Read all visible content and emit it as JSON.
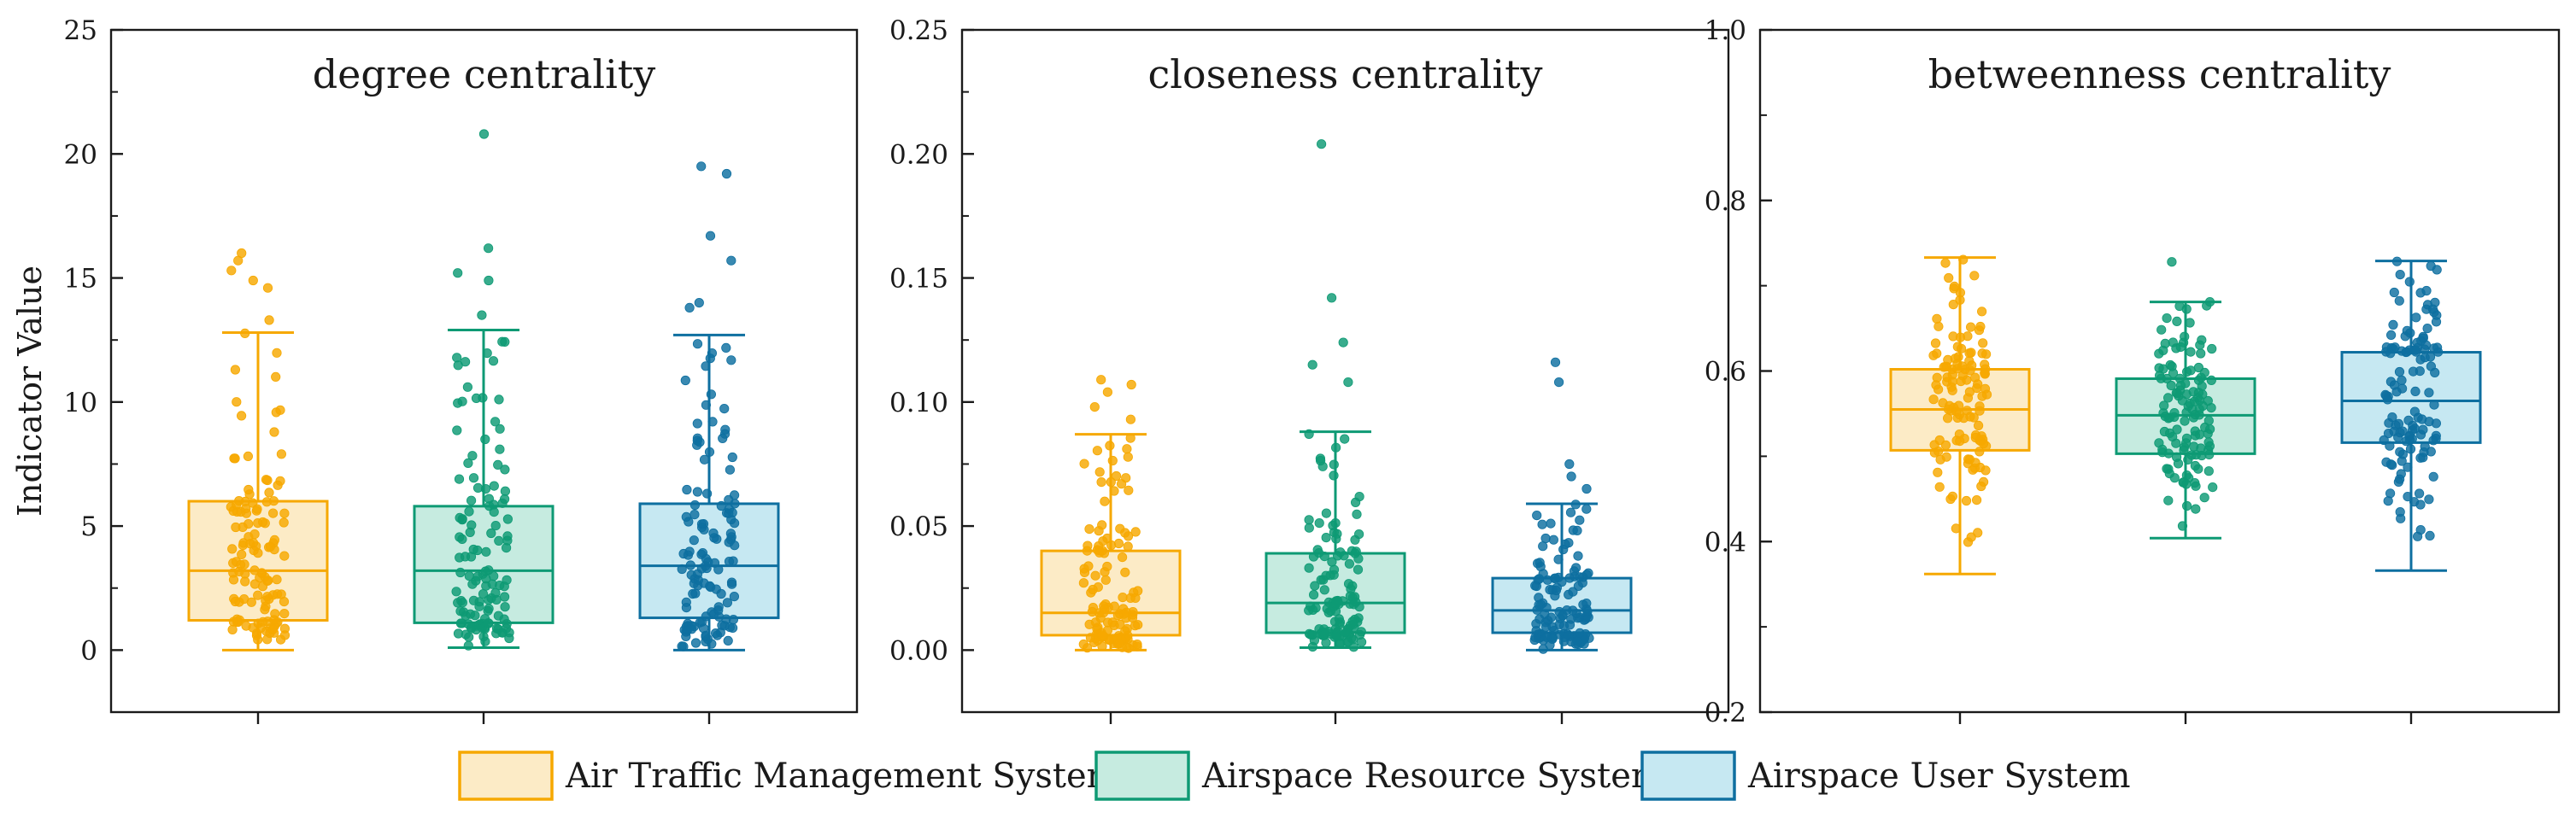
{
  "legend": [
    {
      "label": "Air Traffic Management System",
      "color": "#F6A800",
      "fill": "#FCEBC6"
    },
    {
      "label": "Airspace Resource System",
      "color": "#0E9A74",
      "fill": "#C6EBE0"
    },
    {
      "label": "Airspace User System",
      "color": "#0E6FA0",
      "fill": "#C6E8F2"
    }
  ],
  "ylabel": "Indicator Value",
  "chart_data": [
    {
      "type": "box",
      "title": "degree centrality",
      "ylim": [
        -2.5,
        25
      ],
      "yticks": [
        0,
        5,
        10,
        15,
        20,
        25
      ],
      "yticklabels": [
        "0",
        "5",
        "10",
        "15",
        "20",
        "25"
      ],
      "minor_ticks": [
        2.5,
        7.5,
        12.5,
        17.5,
        22.5
      ],
      "categories": [
        "Air Traffic Management System",
        "Airspace Resource System",
        "Airspace User System"
      ],
      "series": [
        {
          "name": "Air Traffic Management System",
          "whisker_low": 0,
          "q1": 1.2,
          "median": 3.2,
          "q3": 6.0,
          "whisker_high": 12.8,
          "outliers": [
            13.3,
            14.6,
            14.9,
            15.3,
            15.7,
            16.0
          ]
        },
        {
          "name": "Airspace Resource System",
          "whisker_low": 0.1,
          "q1": 1.1,
          "median": 3.2,
          "q3": 5.8,
          "whisker_high": 12.9,
          "outliers": [
            13.5,
            14.9,
            15.2,
            16.2,
            20.8
          ]
        },
        {
          "name": "Airspace User System",
          "whisker_low": 0,
          "q1": 1.3,
          "median": 3.4,
          "q3": 5.9,
          "whisker_high": 12.7,
          "outliers": [
            13.8,
            14.0,
            15.7,
            16.7,
            19.2,
            19.5
          ]
        }
      ]
    },
    {
      "type": "box",
      "title": "closeness centrality",
      "ylim": [
        -0.025,
        0.25
      ],
      "yticks": [
        0,
        0.05,
        0.1,
        0.15,
        0.2,
        0.25
      ],
      "yticklabels": [
        "0.00",
        "0.05",
        "0.10",
        "0.15",
        "0.20",
        "0.25"
      ],
      "minor_ticks": [
        0.025,
        0.075,
        0.125,
        0.175,
        0.225
      ],
      "categories": [
        "Air Traffic Management System",
        "Airspace Resource System",
        "Airspace User System"
      ],
      "series": [
        {
          "name": "Air Traffic Management System",
          "whisker_low": 0,
          "q1": 0.006,
          "median": 0.015,
          "q3": 0.04,
          "whisker_high": 0.087,
          "outliers": [
            0.093,
            0.098,
            0.104,
            0.107,
            0.109
          ]
        },
        {
          "name": "Airspace Resource System",
          "whisker_low": 0.001,
          "q1": 0.007,
          "median": 0.019,
          "q3": 0.039,
          "whisker_high": 0.088,
          "outliers": [
            0.108,
            0.115,
            0.124,
            0.142,
            0.204
          ]
        },
        {
          "name": "Airspace User System",
          "whisker_low": 0,
          "q1": 0.007,
          "median": 0.016,
          "q3": 0.029,
          "whisker_high": 0.059,
          "outliers": [
            0.065,
            0.07,
            0.075,
            0.108,
            0.116
          ]
        }
      ]
    },
    {
      "type": "box",
      "title": "betweenness centrality",
      "ylim": [
        0.2,
        1.0
      ],
      "yticks": [
        0.2,
        0.4,
        0.6,
        0.8,
        1.0
      ],
      "yticklabels": [
        "0.2",
        "0.4",
        "0.6",
        "0.8",
        "1.0"
      ],
      "minor_ticks": [
        0.3,
        0.5,
        0.7,
        0.9
      ],
      "categories": [
        "Air Traffic Management System",
        "Airspace Resource System",
        "Airspace User System"
      ],
      "series": [
        {
          "name": "Air Traffic Management System",
          "whisker_low": 0.362,
          "q1": 0.507,
          "median": 0.555,
          "q3": 0.602,
          "whisker_high": 0.733,
          "outliers": []
        },
        {
          "name": "Airspace Resource System",
          "whisker_low": 0.404,
          "q1": 0.503,
          "median": 0.548,
          "q3": 0.591,
          "whisker_high": 0.681,
          "outliers": [
            0.728
          ]
        },
        {
          "name": "Airspace User System",
          "whisker_low": 0.366,
          "q1": 0.516,
          "median": 0.565,
          "q3": 0.622,
          "whisker_high": 0.729,
          "outliers": []
        }
      ]
    }
  ]
}
